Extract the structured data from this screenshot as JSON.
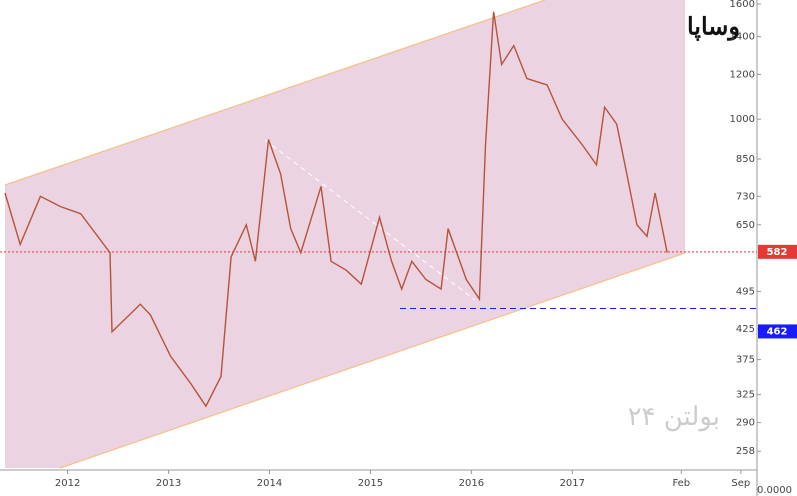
{
  "chart_data": {
    "type": "line",
    "title": "وساپا",
    "watermark": "بولتن ۲۴",
    "log_scale": true,
    "color": "#b5533c",
    "x": [
      2011.38,
      2011.53,
      2011.73,
      2011.93,
      2012.13,
      2012.42,
      2012.44,
      2012.72,
      2012.82,
      2013.02,
      2013.22,
      2013.37,
      2013.52,
      2013.62,
      2013.77,
      2013.86,
      2013.99,
      2014.11,
      2014.21,
      2014.31,
      2014.51,
      2014.61,
      2014.76,
      2014.91,
      2015.09,
      2015.21,
      2015.31,
      2015.41,
      2015.55,
      2015.7,
      2015.77,
      2015.95,
      2016.08,
      2016.14,
      2016.22,
      2016.3,
      2016.42,
      2016.55,
      2016.75,
      2016.9,
      2017.1,
      2017.24,
      2017.32,
      2017.44,
      2017.54,
      2017.64,
      2017.74,
      2017.82,
      2017.94
    ],
    "values": [
      740,
      600,
      730,
      700,
      680,
      580,
      420,
      470,
      450,
      380,
      340,
      310,
      350,
      570,
      650,
      560,
      920,
      800,
      640,
      580,
      760,
      560,
      540,
      510,
      670,
      560,
      500,
      560,
      520,
      500,
      640,
      520,
      480,
      900,
      1550,
      1250,
      1350,
      1180,
      1150,
      1000,
      900,
      830,
      1050,
      980,
      800,
      650,
      620,
      740,
      580
    ],
    "xlim": [
      2011.33,
      2018.83
    ],
    "xticks": [
      {
        "value": 2012,
        "label": "2012"
      },
      {
        "value": 2013,
        "label": "2013"
      },
      {
        "value": 2014,
        "label": "2014"
      },
      {
        "value": 2015,
        "label": "2015"
      },
      {
        "value": 2016,
        "label": "2016"
      },
      {
        "value": 2017,
        "label": "2017"
      },
      {
        "value": 2018.08,
        "label": "Feb"
      },
      {
        "value": 2018.67,
        "label": "Sep"
      }
    ],
    "ylim": [
      239,
      1626
    ],
    "yticks": [
      1600,
      1400,
      1200,
      1000,
      850,
      730,
      650,
      495,
      425,
      375,
      325,
      290,
      258
    ],
    "volume_label": "0.0000",
    "price_lines": [
      {
        "value": 582,
        "color": "#e53935"
      },
      {
        "value": 462,
        "color": "#1a1aff"
      }
    ]
  }
}
